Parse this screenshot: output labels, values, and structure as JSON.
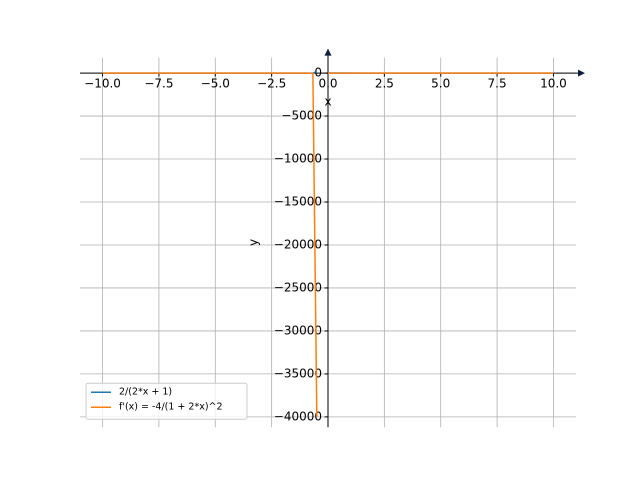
{
  "chart_data": {
    "type": "line",
    "x_label": "x",
    "y_label": "y",
    "x": [
      -10,
      -5,
      -2,
      -1,
      -0.67,
      -0.495,
      -0.3,
      0,
      2,
      5,
      10
    ],
    "series": [
      {
        "name": "2/(2*x + 1)",
        "color": "#1f77b4",
        "values": [
          -0.105,
          -0.222,
          -0.667,
          -2,
          -5.88,
          200,
          null,
          2,
          0.4,
          0.182,
          0.0952
        ]
      },
      {
        "name": "f'(x) = -4/(1 + 2*x)^2",
        "color": "#ff7f0e",
        "values": [
          -0.011,
          -0.049,
          -0.444,
          -4,
          -34.6,
          -40000,
          null,
          -4,
          -0.16,
          -0.033,
          -0.0091
        ]
      }
    ],
    "xlim": [
      -11,
      11
    ],
    "ylim": [
      -41200,
      1800
    ],
    "xticks": [
      {
        "value": -10,
        "label": "−10.0"
      },
      {
        "value": -7.5,
        "label": "−7.5"
      },
      {
        "value": -5,
        "label": "−5.0"
      },
      {
        "value": -2.5,
        "label": "−2.5"
      },
      {
        "value": 0,
        "label": "0.0"
      },
      2.5,
      {
        "value": 5,
        "label": "5.0"
      },
      7.5,
      {
        "value": 10,
        "label": "10.0"
      }
    ],
    "yticks": [
      0,
      {
        "value": -5000,
        "label": "−5000"
      },
      {
        "value": -10000,
        "label": "−10000"
      },
      {
        "value": -15000,
        "label": "−15000"
      },
      {
        "value": -20000,
        "label": "−20000"
      },
      {
        "value": -25000,
        "label": "−25000"
      },
      {
        "value": -30000,
        "label": "−30000"
      },
      {
        "value": -35000,
        "label": "−35000"
      },
      {
        "value": -40000,
        "label": "−40000"
      }
    ],
    "grid": true,
    "legend": "lower left"
  }
}
